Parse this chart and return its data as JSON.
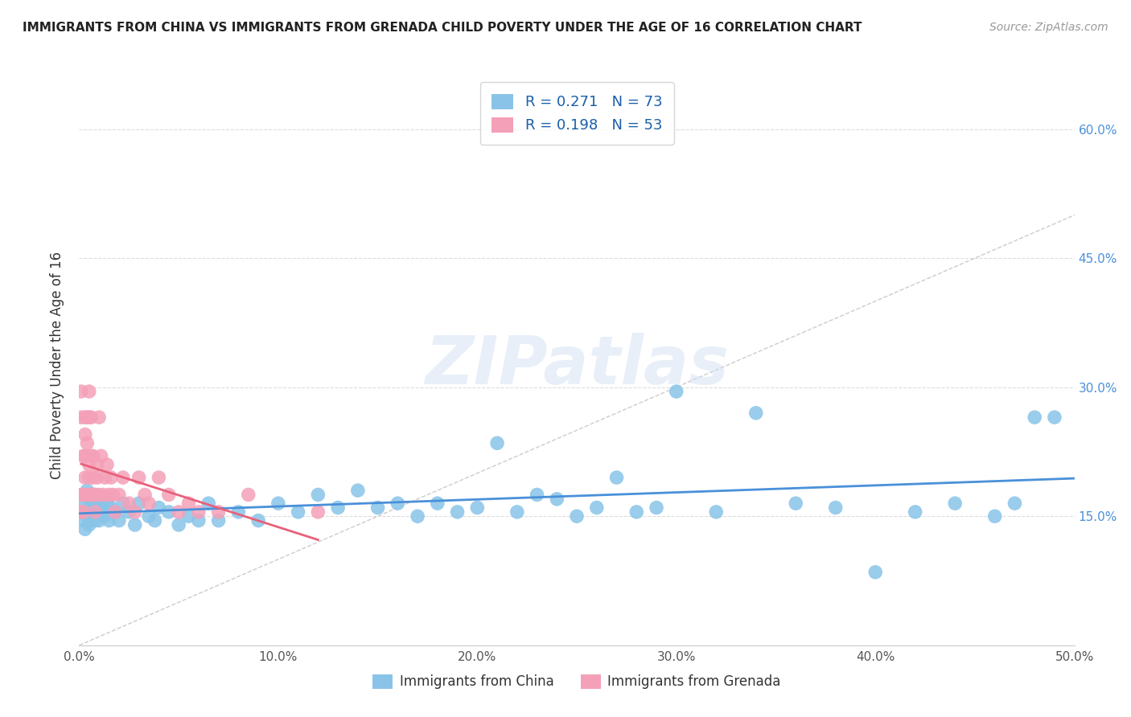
{
  "title": "IMMIGRANTS FROM CHINA VS IMMIGRANTS FROM GRENADA CHILD POVERTY UNDER THE AGE OF 16 CORRELATION CHART",
  "source": "Source: ZipAtlas.com",
  "ylabel": "Child Poverty Under the Age of 16",
  "xlim": [
    0.0,
    0.5
  ],
  "ylim": [
    0.0,
    0.65
  ],
  "xticks": [
    0.0,
    0.1,
    0.2,
    0.3,
    0.4,
    0.5
  ],
  "yticks": [
    0.0,
    0.15,
    0.3,
    0.45,
    0.6
  ],
  "xtick_labels": [
    "0.0%",
    "10.0%",
    "20.0%",
    "30.0%",
    "40.0%",
    "50.0%"
  ],
  "ytick_labels_right": [
    "",
    "15.0%",
    "30.0%",
    "45.0%",
    "60.0%"
  ],
  "china_color": "#89C4E8",
  "grenada_color": "#F4A0B8",
  "china_line_color": "#4A90D9",
  "grenada_line_color": "#E8607A",
  "china_R": 0.271,
  "china_N": 73,
  "grenada_R": 0.198,
  "grenada_N": 53,
  "legend_label_china": "Immigrants from China",
  "legend_label_grenada": "Immigrants from Grenada",
  "watermark": "ZIPatlas",
  "china_x": [
    0.001,
    0.002,
    0.002,
    0.003,
    0.003,
    0.004,
    0.004,
    0.005,
    0.005,
    0.006,
    0.006,
    0.007,
    0.007,
    0.008,
    0.008,
    0.009,
    0.01,
    0.01,
    0.011,
    0.012,
    0.013,
    0.014,
    0.015,
    0.016,
    0.018,
    0.02,
    0.022,
    0.025,
    0.028,
    0.03,
    0.035,
    0.038,
    0.04,
    0.045,
    0.05,
    0.055,
    0.06,
    0.065,
    0.07,
    0.08,
    0.09,
    0.1,
    0.11,
    0.12,
    0.13,
    0.14,
    0.15,
    0.16,
    0.17,
    0.18,
    0.19,
    0.2,
    0.21,
    0.22,
    0.23,
    0.24,
    0.25,
    0.26,
    0.27,
    0.28,
    0.29,
    0.3,
    0.32,
    0.34,
    0.36,
    0.38,
    0.4,
    0.42,
    0.44,
    0.46,
    0.47,
    0.48,
    0.49
  ],
  "china_y": [
    0.155,
    0.175,
    0.145,
    0.165,
    0.135,
    0.18,
    0.15,
    0.17,
    0.14,
    0.16,
    0.145,
    0.155,
    0.165,
    0.145,
    0.175,
    0.155,
    0.165,
    0.145,
    0.16,
    0.155,
    0.15,
    0.165,
    0.145,
    0.16,
    0.155,
    0.145,
    0.165,
    0.155,
    0.14,
    0.165,
    0.15,
    0.145,
    0.16,
    0.155,
    0.14,
    0.15,
    0.145,
    0.165,
    0.145,
    0.155,
    0.145,
    0.165,
    0.155,
    0.175,
    0.16,
    0.18,
    0.16,
    0.165,
    0.15,
    0.165,
    0.155,
    0.16,
    0.235,
    0.155,
    0.175,
    0.17,
    0.15,
    0.16,
    0.195,
    0.155,
    0.16,
    0.295,
    0.155,
    0.27,
    0.165,
    0.16,
    0.085,
    0.155,
    0.165,
    0.15,
    0.165,
    0.265,
    0.265
  ],
  "grenada_x": [
    0.001,
    0.001,
    0.001,
    0.001,
    0.002,
    0.002,
    0.002,
    0.003,
    0.003,
    0.003,
    0.003,
    0.004,
    0.004,
    0.004,
    0.005,
    0.005,
    0.005,
    0.005,
    0.006,
    0.006,
    0.006,
    0.007,
    0.007,
    0.007,
    0.008,
    0.008,
    0.009,
    0.009,
    0.01,
    0.01,
    0.011,
    0.012,
    0.013,
    0.014,
    0.015,
    0.016,
    0.017,
    0.018,
    0.02,
    0.022,
    0.025,
    0.028,
    0.03,
    0.033,
    0.035,
    0.04,
    0.045,
    0.05,
    0.055,
    0.06,
    0.07,
    0.085,
    0.12
  ],
  "grenada_y": [
    0.155,
    0.175,
    0.265,
    0.295,
    0.155,
    0.22,
    0.175,
    0.265,
    0.245,
    0.22,
    0.195,
    0.175,
    0.265,
    0.235,
    0.21,
    0.195,
    0.265,
    0.295,
    0.175,
    0.22,
    0.265,
    0.195,
    0.22,
    0.175,
    0.155,
    0.175,
    0.21,
    0.195,
    0.175,
    0.265,
    0.22,
    0.175,
    0.195,
    0.21,
    0.175,
    0.195,
    0.175,
    0.155,
    0.175,
    0.195,
    0.165,
    0.155,
    0.195,
    0.175,
    0.165,
    0.195,
    0.175,
    0.155,
    0.165,
    0.155,
    0.155,
    0.175,
    0.155
  ]
}
